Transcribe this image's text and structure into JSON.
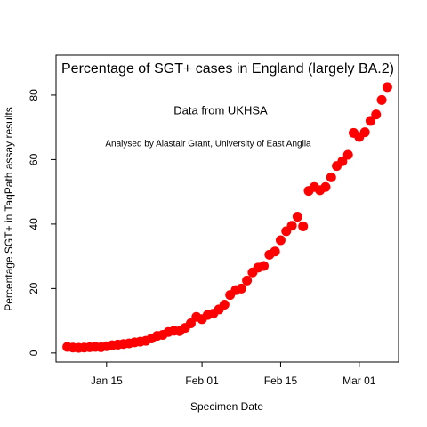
{
  "chart_data": {
    "type": "scatter",
    "title": "Percentage of SGT+ cases in England (largely BA.2)",
    "subtitle": "Data from UKHSA",
    "annotation": "Analysed by Alastair Grant, University of East Anglia",
    "xlabel": "Specimen Date",
    "ylabel": "Percentage SGT+ in TaqPath assay results",
    "color": "#ff0000",
    "x": [
      "01-08",
      "01-09",
      "01-10",
      "01-11",
      "01-12",
      "01-13",
      "01-14",
      "01-15",
      "01-16",
      "01-17",
      "01-18",
      "01-19",
      "01-20",
      "01-21",
      "01-22",
      "01-23",
      "01-24",
      "01-25",
      "01-26",
      "01-27",
      "01-28",
      "01-29",
      "01-30",
      "01-31",
      "02-01",
      "02-02",
      "02-03",
      "02-04",
      "02-05",
      "02-06",
      "02-07",
      "02-08",
      "02-09",
      "02-10",
      "02-11",
      "02-12",
      "02-13",
      "02-14",
      "02-15",
      "02-16",
      "02-17",
      "02-18",
      "02-19",
      "02-20",
      "02-21",
      "02-22",
      "02-23",
      "02-24",
      "02-25",
      "02-26",
      "02-27",
      "02-28",
      "03-01",
      "03-02",
      "03-03",
      "03-04",
      "03-05",
      "03-06"
    ],
    "values": [
      1.9,
      1.7,
      1.6,
      1.7,
      1.8,
      1.9,
      1.8,
      2.1,
      2.4,
      2.6,
      2.8,
      3.0,
      3.3,
      3.5,
      3.8,
      4.5,
      5.3,
      5.6,
      6.5,
      6.9,
      6.8,
      7.8,
      9.2,
      11.2,
      10.5,
      11.8,
      12.2,
      13.5,
      15,
      18,
      19.5,
      20,
      22.5,
      25,
      26.5,
      27,
      30.5,
      31.5,
      35,
      37.8,
      39.5,
      42.3,
      39.3,
      50.3,
      51.5,
      50.5,
      51.5,
      54.5,
      58,
      59.5,
      61.5,
      68.3,
      67,
      68.5,
      72,
      74,
      78.5,
      82.5
    ],
    "xlim": [
      "01-06",
      "03-08"
    ],
    "xticks": [
      {
        "value": "01-15",
        "label": "Jan 15"
      },
      {
        "value": "02-01",
        "label": "Feb 01"
      },
      {
        "value": "02-15",
        "label": "Feb 15"
      },
      {
        "value": "03-01",
        "label": "Mar 01"
      }
    ],
    "ylim": [
      -2.8,
      92.4
    ],
    "yticks": [
      0,
      20,
      40,
      60,
      80
    ]
  }
}
